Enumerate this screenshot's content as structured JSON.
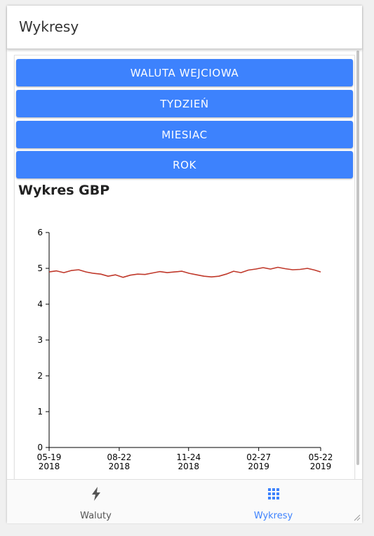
{
  "header": {
    "title": "Wykresy"
  },
  "buttons": [
    {
      "label": "WALUTA WEJCIOWA"
    },
    {
      "label": "TYDZIEŃ"
    },
    {
      "label": "MIESIAC"
    },
    {
      "label": "ROK"
    }
  ],
  "chart_heading": "Wykres GBP",
  "chart_data": {
    "type": "line",
    "ylim": [
      0,
      6
    ],
    "yticks": [
      "0",
      "1",
      "2",
      "3",
      "4",
      "5",
      "6"
    ],
    "xticks": [
      {
        "date": "2018-05-19",
        "line1": "05-19",
        "line2": "2018"
      },
      {
        "date": "2018-08-22",
        "line1": "08-22",
        "line2": "2018"
      },
      {
        "date": "2018-11-24",
        "line1": "11-24",
        "line2": "2018"
      },
      {
        "date": "2019-02-27",
        "line1": "02-27",
        "line2": "2019"
      },
      {
        "date": "2019-05-22",
        "line1": "05-22",
        "line2": "2019"
      }
    ],
    "color": "#c0392b",
    "series": [
      {
        "points": [
          [
            "2018-05-19",
            4.9
          ],
          [
            "2018-05-29",
            4.93
          ],
          [
            "2018-06-08",
            4.88
          ],
          [
            "2018-06-18",
            4.94
          ],
          [
            "2018-06-28",
            4.96
          ],
          [
            "2018-07-08",
            4.9
          ],
          [
            "2018-07-18",
            4.86
          ],
          [
            "2018-07-28",
            4.84
          ],
          [
            "2018-08-07",
            4.78
          ],
          [
            "2018-08-17",
            4.82
          ],
          [
            "2018-08-27",
            4.75
          ],
          [
            "2018-09-06",
            4.81
          ],
          [
            "2018-09-16",
            4.84
          ],
          [
            "2018-09-26",
            4.83
          ],
          [
            "2018-10-06",
            4.87
          ],
          [
            "2018-10-16",
            4.91
          ],
          [
            "2018-10-26",
            4.88
          ],
          [
            "2018-11-05",
            4.9
          ],
          [
            "2018-11-15",
            4.92
          ],
          [
            "2018-11-25",
            4.86
          ],
          [
            "2018-12-05",
            4.82
          ],
          [
            "2018-12-15",
            4.78
          ],
          [
            "2018-12-25",
            4.76
          ],
          [
            "2019-01-04",
            4.78
          ],
          [
            "2019-01-14",
            4.84
          ],
          [
            "2019-01-24",
            4.92
          ],
          [
            "2019-02-03",
            4.88
          ],
          [
            "2019-02-13",
            4.95
          ],
          [
            "2019-02-23",
            4.98
          ],
          [
            "2019-03-05",
            5.02
          ],
          [
            "2019-03-15",
            4.98
          ],
          [
            "2019-03-25",
            5.03
          ],
          [
            "2019-04-04",
            4.99
          ],
          [
            "2019-04-14",
            4.96
          ],
          [
            "2019-04-24",
            4.97
          ],
          [
            "2019-05-04",
            5.0
          ],
          [
            "2019-05-14",
            4.95
          ],
          [
            "2019-05-22",
            4.9
          ]
        ]
      }
    ]
  },
  "tabs": [
    {
      "label": "Waluty",
      "icon": "lightning-icon",
      "active": false
    },
    {
      "label": "Wykresy",
      "icon": "grid-icon",
      "active": true
    }
  ],
  "colors": {
    "accent": "#3d82fd",
    "tab_inactive": "#555555",
    "line": "#c0392b"
  }
}
